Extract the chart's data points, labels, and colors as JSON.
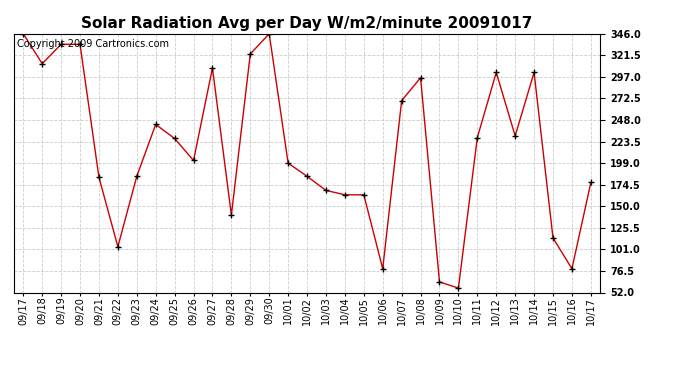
{
  "title": "Solar Radiation Avg per Day W/m2/minute 20091017",
  "copyright_text": "Copyright 2009 Cartronics.com",
  "labels": [
    "09/17",
    "09/18",
    "09/19",
    "09/20",
    "09/21",
    "09/22",
    "09/23",
    "09/24",
    "09/25",
    "09/26",
    "09/27",
    "09/28",
    "09/29",
    "09/30",
    "10/01",
    "10/02",
    "10/03",
    "10/04",
    "10/05",
    "10/06",
    "10/07",
    "10/08",
    "10/09",
    "10/10",
    "10/11",
    "10/12",
    "10/13",
    "10/14",
    "10/15",
    "10/16",
    "10/17"
  ],
  "values": [
    346,
    312,
    334,
    334,
    183,
    104,
    184,
    243,
    227,
    202,
    307,
    140,
    323,
    346,
    199,
    184,
    168,
    163,
    163,
    79,
    270,
    296,
    64,
    57,
    228,
    302,
    230,
    302,
    114,
    79,
    177
  ],
  "line_color": "#cc0000",
  "marker_color": "#000000",
  "bg_color": "#ffffff",
  "grid_color": "#cccccc",
  "ylim": [
    52.0,
    346.0
  ],
  "yticks": [
    52.0,
    76.5,
    101.0,
    125.5,
    150.0,
    174.5,
    199.0,
    223.5,
    248.0,
    272.5,
    297.0,
    321.5,
    346.0
  ],
  "title_fontsize": 11,
  "tick_fontsize": 7,
  "copyright_fontsize": 7
}
